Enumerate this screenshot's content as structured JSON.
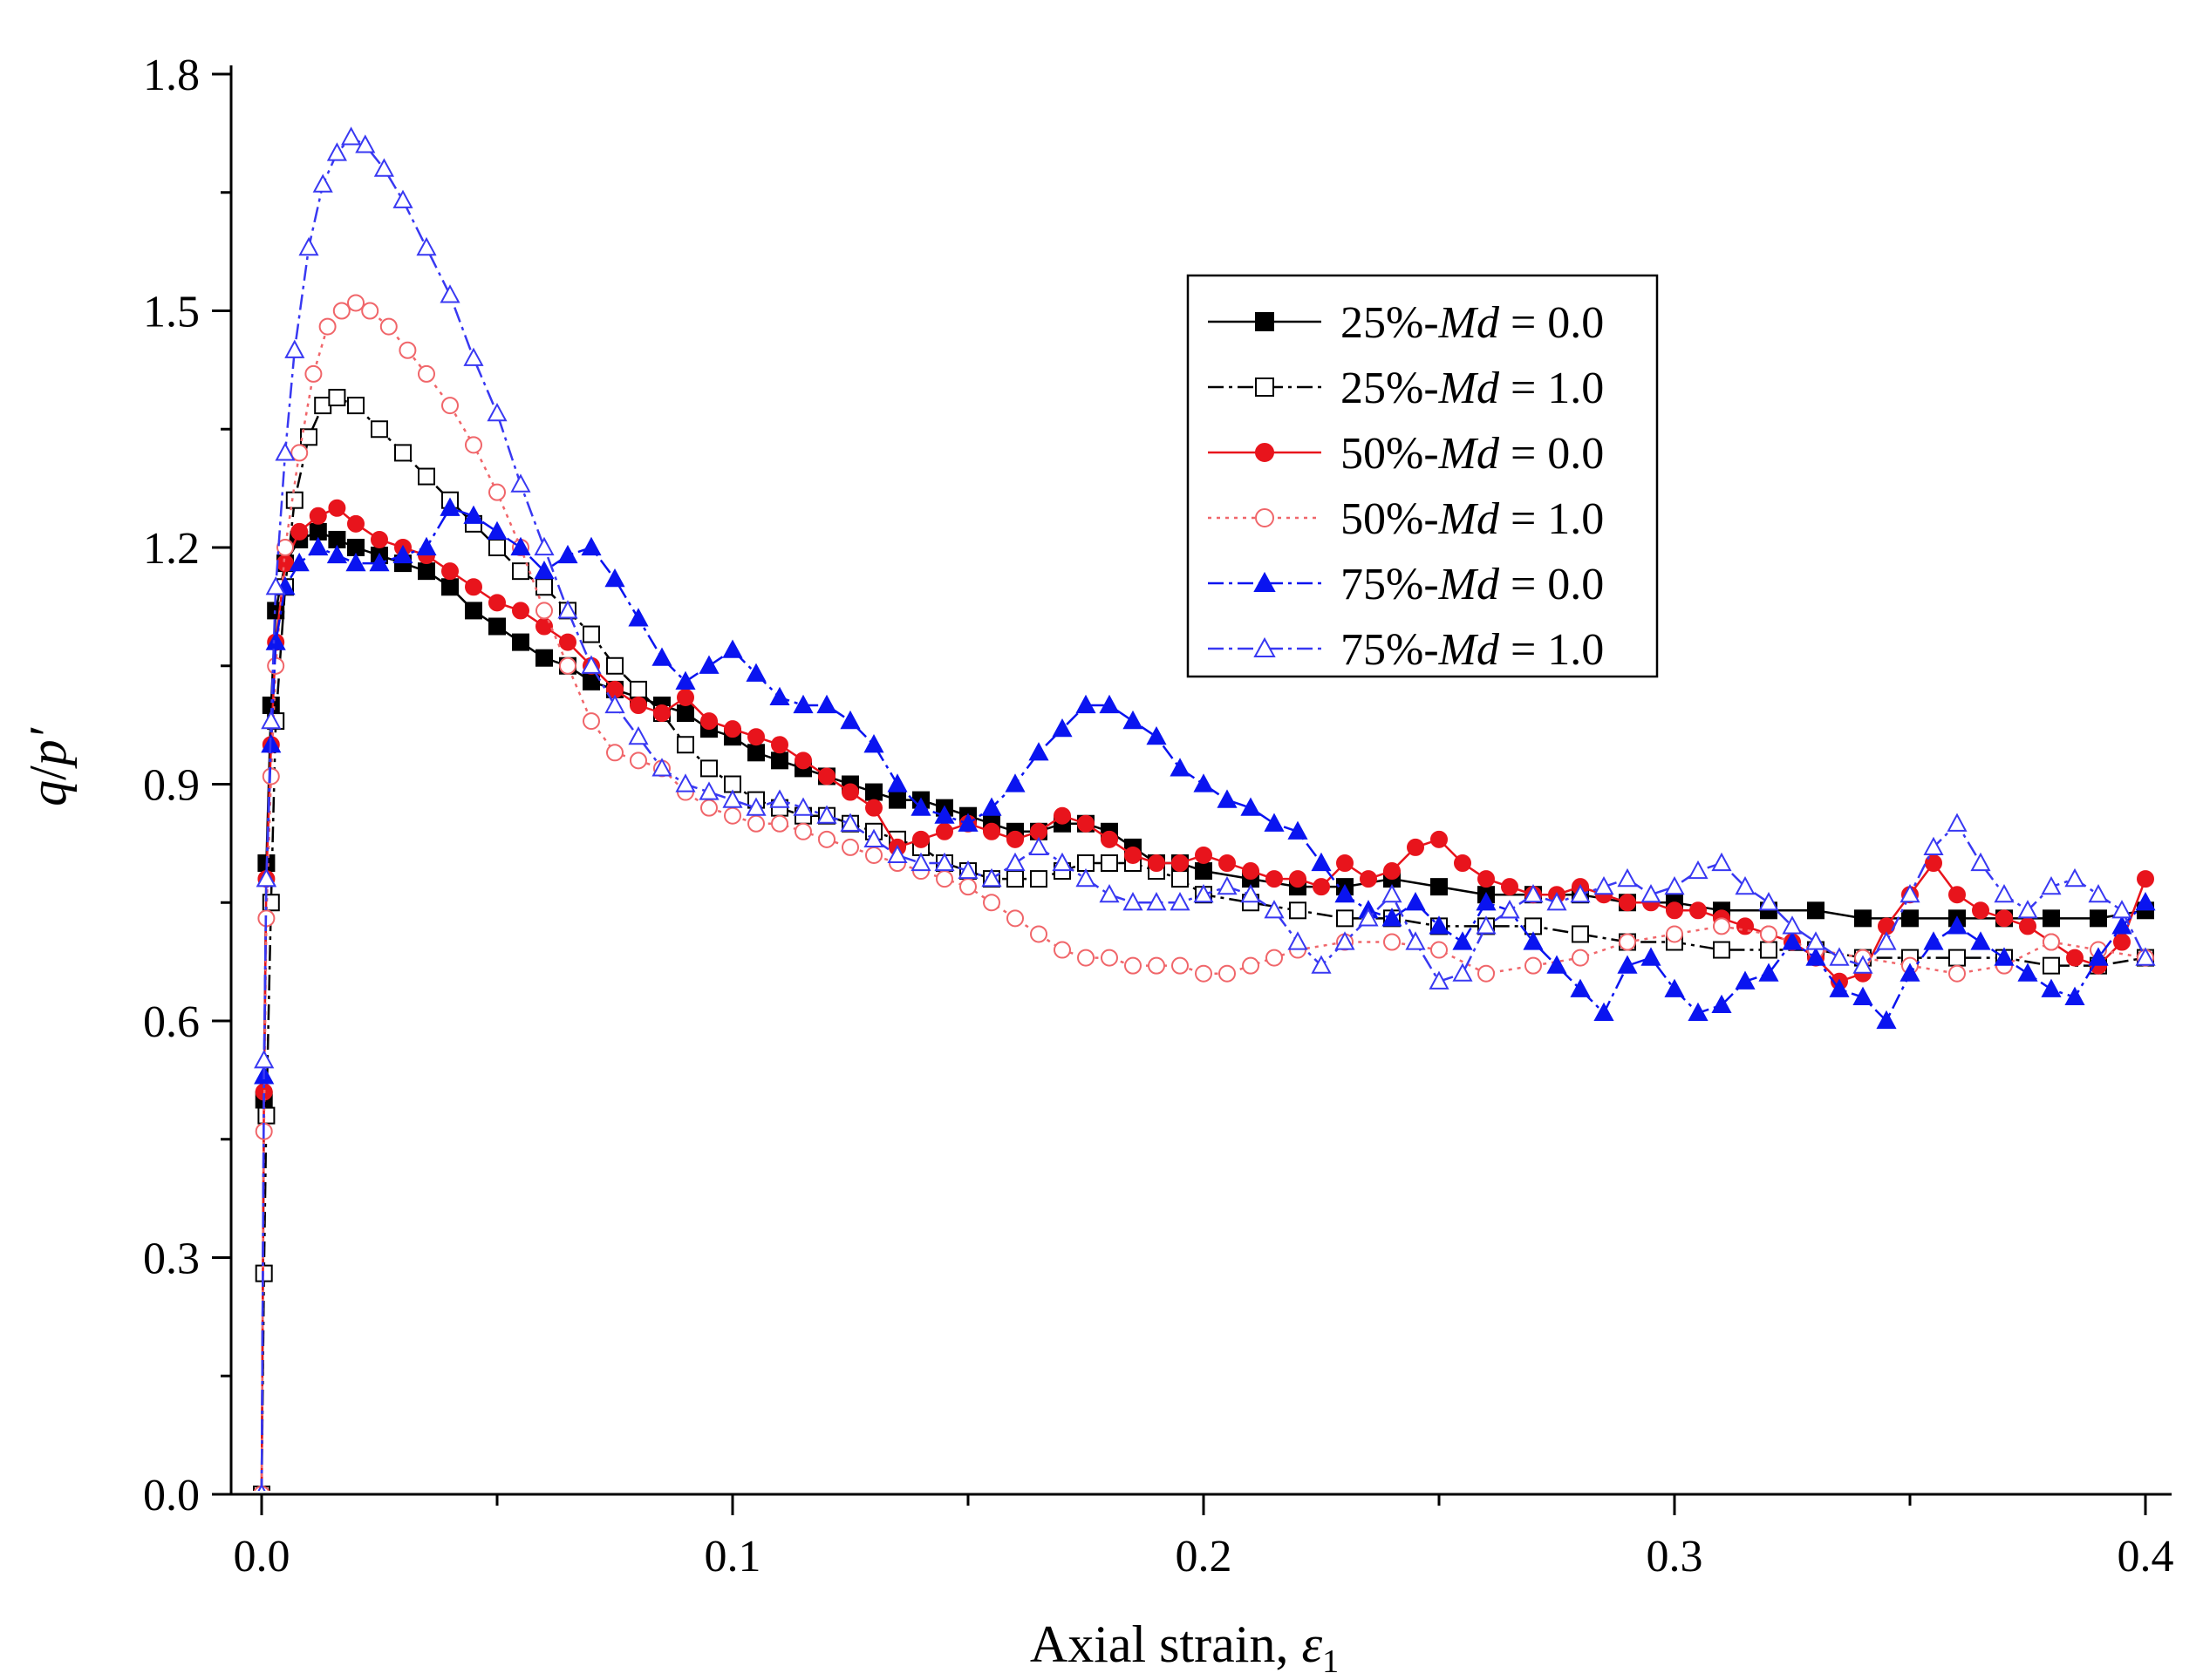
{
  "chart_data": {
    "type": "scatter",
    "xlabel_main": "Axial strain, ",
    "xlabel_symbol": "ε",
    "xlabel_sub": "1",
    "ylabel_var": "q",
    "ylabel_sep": "/",
    "ylabel_var2": "p′",
    "xlim": [
      0.0,
      0.4
    ],
    "ylim": [
      0.0,
      1.8
    ],
    "x_ticks": [
      0.0,
      0.1,
      0.2,
      0.3,
      0.4
    ],
    "x_tick_labels": [
      "0.0",
      "0.1",
      "0.2",
      "0.3",
      "0.4"
    ],
    "y_ticks": [
      0.0,
      0.3,
      0.6,
      0.9,
      1.2,
      1.5,
      1.8
    ],
    "y_tick_labels": [
      "0.0",
      "0.3",
      "0.6",
      "0.9",
      "1.2",
      "1.5",
      "1.8"
    ],
    "legend_position": "upper-right",
    "series": [
      {
        "name": "25%-Md = 0.0",
        "legend_prefix": "25%-",
        "legend_var": "Md",
        "legend_suffix": " = 0.0",
        "color": "#000000",
        "marker": "square",
        "filled": true,
        "dash": "none",
        "x": [
          0,
          0.0005,
          0.001,
          0.002,
          0.003,
          0.005,
          0.008,
          0.012,
          0.016,
          0.02,
          0.025,
          0.03,
          0.035,
          0.04,
          0.045,
          0.05,
          0.055,
          0.06,
          0.065,
          0.07,
          0.075,
          0.08,
          0.085,
          0.09,
          0.095,
          0.1,
          0.105,
          0.11,
          0.115,
          0.12,
          0.125,
          0.13,
          0.135,
          0.14,
          0.145,
          0.15,
          0.155,
          0.16,
          0.165,
          0.17,
          0.175,
          0.18,
          0.185,
          0.19,
          0.195,
          0.2,
          0.21,
          0.22,
          0.23,
          0.24,
          0.25,
          0.26,
          0.27,
          0.28,
          0.29,
          0.3,
          0.31,
          0.32,
          0.33,
          0.34,
          0.35,
          0.36,
          0.37,
          0.38,
          0.39,
          0.4
        ],
        "y": [
          0,
          0.5,
          0.8,
          1.0,
          1.12,
          1.18,
          1.21,
          1.22,
          1.21,
          1.2,
          1.19,
          1.18,
          1.17,
          1.15,
          1.12,
          1.1,
          1.08,
          1.06,
          1.05,
          1.03,
          1.02,
          1.01,
          1.0,
          0.99,
          0.97,
          0.96,
          0.94,
          0.93,
          0.92,
          0.91,
          0.9,
          0.89,
          0.88,
          0.88,
          0.87,
          0.86,
          0.85,
          0.84,
          0.84,
          0.85,
          0.85,
          0.84,
          0.82,
          0.8,
          0.8,
          0.79,
          0.78,
          0.77,
          0.77,
          0.78,
          0.77,
          0.76,
          0.76,
          0.76,
          0.75,
          0.75,
          0.74,
          0.74,
          0.74,
          0.73,
          0.73,
          0.73,
          0.73,
          0.73,
          0.73,
          0.74
        ]
      },
      {
        "name": "25%-Md = 1.0",
        "legend_prefix": "25%-",
        "legend_var": "Md",
        "legend_suffix": " = 1.0",
        "color": "#000000",
        "marker": "square",
        "filled": false,
        "dash": "18,6,4,6",
        "x": [
          0,
          0.0005,
          0.001,
          0.002,
          0.003,
          0.005,
          0.007,
          0.01,
          0.013,
          0.016,
          0.02,
          0.025,
          0.03,
          0.035,
          0.04,
          0.045,
          0.05,
          0.055,
          0.06,
          0.065,
          0.07,
          0.075,
          0.08,
          0.085,
          0.09,
          0.095,
          0.1,
          0.105,
          0.11,
          0.115,
          0.12,
          0.125,
          0.13,
          0.135,
          0.14,
          0.145,
          0.15,
          0.155,
          0.16,
          0.165,
          0.17,
          0.175,
          0.18,
          0.185,
          0.19,
          0.195,
          0.2,
          0.21,
          0.22,
          0.23,
          0.24,
          0.25,
          0.26,
          0.27,
          0.28,
          0.29,
          0.3,
          0.31,
          0.32,
          0.33,
          0.34,
          0.35,
          0.36,
          0.37,
          0.38,
          0.39,
          0.4
        ],
        "y": [
          0,
          0.28,
          0.48,
          0.75,
          0.98,
          1.15,
          1.26,
          1.34,
          1.38,
          1.39,
          1.38,
          1.35,
          1.32,
          1.29,
          1.26,
          1.23,
          1.2,
          1.17,
          1.15,
          1.12,
          1.09,
          1.05,
          1.02,
          0.99,
          0.95,
          0.92,
          0.9,
          0.88,
          0.87,
          0.86,
          0.86,
          0.85,
          0.84,
          0.83,
          0.82,
          0.8,
          0.79,
          0.78,
          0.78,
          0.78,
          0.79,
          0.8,
          0.8,
          0.8,
          0.79,
          0.78,
          0.76,
          0.75,
          0.74,
          0.73,
          0.73,
          0.72,
          0.72,
          0.72,
          0.71,
          0.7,
          0.7,
          0.69,
          0.69,
          0.69,
          0.68,
          0.68,
          0.68,
          0.68,
          0.67,
          0.67,
          0.68
        ]
      },
      {
        "name": "50%-Md = 0.0",
        "legend_prefix": "50%-",
        "legend_var": "Md",
        "legend_suffix": " = 0.0",
        "color": "#e8141c",
        "marker": "circle",
        "filled": true,
        "dash": "none",
        "x": [
          0,
          0.0005,
          0.001,
          0.002,
          0.003,
          0.005,
          0.008,
          0.012,
          0.016,
          0.02,
          0.025,
          0.03,
          0.035,
          0.04,
          0.045,
          0.05,
          0.055,
          0.06,
          0.065,
          0.07,
          0.075,
          0.08,
          0.085,
          0.09,
          0.095,
          0.1,
          0.105,
          0.11,
          0.115,
          0.12,
          0.125,
          0.13,
          0.135,
          0.14,
          0.145,
          0.15,
          0.155,
          0.16,
          0.165,
          0.17,
          0.175,
          0.18,
          0.185,
          0.19,
          0.195,
          0.2,
          0.205,
          0.21,
          0.215,
          0.22,
          0.225,
          0.23,
          0.235,
          0.24,
          0.245,
          0.25,
          0.255,
          0.26,
          0.265,
          0.27,
          0.275,
          0.28,
          0.285,
          0.29,
          0.295,
          0.3,
          0.305,
          0.31,
          0.315,
          0.32,
          0.325,
          0.33,
          0.335,
          0.34,
          0.345,
          0.35,
          0.355,
          0.36,
          0.365,
          0.37,
          0.375,
          0.38,
          0.385,
          0.39,
          0.395,
          0.4
        ],
        "y": [
          0,
          0.51,
          0.78,
          0.95,
          1.08,
          1.18,
          1.22,
          1.24,
          1.25,
          1.23,
          1.21,
          1.2,
          1.19,
          1.17,
          1.15,
          1.13,
          1.12,
          1.1,
          1.08,
          1.05,
          1.02,
          1.0,
          0.99,
          1.01,
          0.98,
          0.97,
          0.96,
          0.95,
          0.93,
          0.91,
          0.89,
          0.87,
          0.82,
          0.83,
          0.84,
          0.85,
          0.84,
          0.83,
          0.84,
          0.86,
          0.85,
          0.83,
          0.81,
          0.8,
          0.8,
          0.81,
          0.8,
          0.79,
          0.78,
          0.78,
          0.77,
          0.8,
          0.78,
          0.79,
          0.82,
          0.83,
          0.8,
          0.78,
          0.77,
          0.76,
          0.76,
          0.77,
          0.76,
          0.75,
          0.75,
          0.74,
          0.74,
          0.73,
          0.72,
          0.71,
          0.7,
          0.68,
          0.65,
          0.66,
          0.72,
          0.76,
          0.8,
          0.76,
          0.74,
          0.73,
          0.72,
          0.7,
          0.68,
          0.67,
          0.7,
          0.78
        ]
      },
      {
        "name": "50%-Md = 1.0",
        "legend_prefix": "50%-",
        "legend_var": "Md",
        "legend_suffix": " = 1.0",
        "color": "#f0666a",
        "marker": "circle",
        "filled": false,
        "dash": "4,6",
        "x": [
          0,
          0.0005,
          0.001,
          0.002,
          0.003,
          0.005,
          0.008,
          0.011,
          0.014,
          0.017,
          0.02,
          0.023,
          0.027,
          0.031,
          0.035,
          0.04,
          0.045,
          0.05,
          0.055,
          0.06,
          0.065,
          0.07,
          0.075,
          0.08,
          0.085,
          0.09,
          0.095,
          0.1,
          0.105,
          0.11,
          0.115,
          0.12,
          0.125,
          0.13,
          0.135,
          0.14,
          0.145,
          0.15,
          0.155,
          0.16,
          0.165,
          0.17,
          0.175,
          0.18,
          0.185,
          0.19,
          0.195,
          0.2,
          0.205,
          0.21,
          0.215,
          0.22,
          0.23,
          0.24,
          0.25,
          0.26,
          0.27,
          0.28,
          0.29,
          0.3,
          0.31,
          0.32,
          0.33,
          0.34,
          0.35,
          0.36,
          0.37,
          0.38,
          0.39,
          0.4
        ],
        "y": [
          0,
          0.46,
          0.73,
          0.91,
          1.05,
          1.2,
          1.32,
          1.42,
          1.48,
          1.5,
          1.51,
          1.5,
          1.48,
          1.45,
          1.42,
          1.38,
          1.33,
          1.27,
          1.2,
          1.12,
          1.05,
          0.98,
          0.94,
          0.93,
          0.92,
          0.89,
          0.87,
          0.86,
          0.85,
          0.85,
          0.84,
          0.83,
          0.82,
          0.81,
          0.8,
          0.79,
          0.78,
          0.77,
          0.75,
          0.73,
          0.71,
          0.69,
          0.68,
          0.68,
          0.67,
          0.67,
          0.67,
          0.66,
          0.66,
          0.67,
          0.68,
          0.69,
          0.7,
          0.7,
          0.69,
          0.66,
          0.67,
          0.68,
          0.7,
          0.71,
          0.72,
          0.71,
          0.69,
          0.68,
          0.67,
          0.66,
          0.67,
          0.7,
          0.69,
          0.68
        ]
      },
      {
        "name": "75%-Md = 0.0",
        "legend_prefix": "75%-",
        "legend_var": "Md",
        "legend_suffix": " = 0.0",
        "color": "#0a14f0",
        "marker": "triangle",
        "filled": true,
        "dash": "18,6,4,6",
        "x": [
          0,
          0.0005,
          0.001,
          0.002,
          0.003,
          0.005,
          0.008,
          0.012,
          0.016,
          0.02,
          0.025,
          0.03,
          0.035,
          0.04,
          0.045,
          0.05,
          0.055,
          0.06,
          0.065,
          0.07,
          0.075,
          0.08,
          0.085,
          0.09,
          0.095,
          0.1,
          0.105,
          0.11,
          0.115,
          0.12,
          0.125,
          0.13,
          0.135,
          0.14,
          0.145,
          0.15,
          0.155,
          0.16,
          0.165,
          0.17,
          0.175,
          0.18,
          0.185,
          0.19,
          0.195,
          0.2,
          0.205,
          0.21,
          0.215,
          0.22,
          0.225,
          0.23,
          0.235,
          0.24,
          0.245,
          0.25,
          0.255,
          0.26,
          0.265,
          0.27,
          0.275,
          0.28,
          0.285,
          0.29,
          0.295,
          0.3,
          0.305,
          0.31,
          0.315,
          0.32,
          0.325,
          0.33,
          0.335,
          0.34,
          0.345,
          0.35,
          0.355,
          0.36,
          0.365,
          0.37,
          0.375,
          0.38,
          0.385,
          0.39,
          0.395,
          0.4
        ],
        "y": [
          0,
          0.53,
          0.78,
          0.95,
          1.08,
          1.15,
          1.18,
          1.2,
          1.19,
          1.18,
          1.18,
          1.19,
          1.2,
          1.25,
          1.24,
          1.22,
          1.2,
          1.17,
          1.19,
          1.2,
          1.16,
          1.11,
          1.06,
          1.03,
          1.05,
          1.07,
          1.04,
          1.01,
          1.0,
          1.0,
          0.98,
          0.95,
          0.9,
          0.87,
          0.86,
          0.85,
          0.87,
          0.9,
          0.94,
          0.97,
          1.0,
          1.0,
          0.98,
          0.96,
          0.92,
          0.9,
          0.88,
          0.87,
          0.85,
          0.84,
          0.8,
          0.76,
          0.74,
          0.73,
          0.75,
          0.72,
          0.7,
          0.75,
          0.74,
          0.7,
          0.67,
          0.64,
          0.61,
          0.67,
          0.68,
          0.64,
          0.61,
          0.62,
          0.65,
          0.66,
          0.7,
          0.68,
          0.64,
          0.63,
          0.6,
          0.66,
          0.7,
          0.72,
          0.7,
          0.68,
          0.66,
          0.64,
          0.63,
          0.68,
          0.72,
          0.75
        ]
      },
      {
        "name": "75%-Md = 1.0",
        "legend_prefix": "75%-",
        "legend_var": "Md",
        "legend_suffix": " = 1.0",
        "color": "#3838f2",
        "marker": "triangle",
        "filled": false,
        "dash": "18,6,4,6",
        "x": [
          0,
          0.0005,
          0.001,
          0.002,
          0.003,
          0.005,
          0.007,
          0.01,
          0.013,
          0.016,
          0.019,
          0.022,
          0.026,
          0.03,
          0.035,
          0.04,
          0.045,
          0.05,
          0.055,
          0.06,
          0.065,
          0.07,
          0.075,
          0.08,
          0.085,
          0.09,
          0.095,
          0.1,
          0.105,
          0.11,
          0.115,
          0.12,
          0.125,
          0.13,
          0.135,
          0.14,
          0.145,
          0.15,
          0.155,
          0.16,
          0.165,
          0.17,
          0.175,
          0.18,
          0.185,
          0.19,
          0.195,
          0.2,
          0.205,
          0.21,
          0.215,
          0.22,
          0.225,
          0.23,
          0.235,
          0.24,
          0.245,
          0.25,
          0.255,
          0.26,
          0.265,
          0.27,
          0.275,
          0.28,
          0.285,
          0.29,
          0.295,
          0.3,
          0.305,
          0.31,
          0.315,
          0.32,
          0.325,
          0.33,
          0.335,
          0.34,
          0.345,
          0.35,
          0.355,
          0.36,
          0.365,
          0.37,
          0.375,
          0.38,
          0.385,
          0.39,
          0.395,
          0.4
        ],
        "y": [
          0,
          0.55,
          0.78,
          0.98,
          1.15,
          1.32,
          1.45,
          1.58,
          1.66,
          1.7,
          1.72,
          1.71,
          1.68,
          1.64,
          1.58,
          1.52,
          1.44,
          1.37,
          1.28,
          1.2,
          1.12,
          1.05,
          1.0,
          0.96,
          0.92,
          0.9,
          0.89,
          0.88,
          0.87,
          0.88,
          0.87,
          0.86,
          0.85,
          0.83,
          0.81,
          0.8,
          0.8,
          0.79,
          0.78,
          0.8,
          0.82,
          0.8,
          0.78,
          0.76,
          0.75,
          0.75,
          0.75,
          0.76,
          0.77,
          0.76,
          0.74,
          0.7,
          0.67,
          0.7,
          0.73,
          0.76,
          0.7,
          0.65,
          0.66,
          0.72,
          0.74,
          0.76,
          0.75,
          0.76,
          0.77,
          0.78,
          0.76,
          0.77,
          0.79,
          0.8,
          0.77,
          0.75,
          0.72,
          0.7,
          0.68,
          0.67,
          0.7,
          0.76,
          0.82,
          0.85,
          0.8,
          0.76,
          0.74,
          0.77,
          0.78,
          0.76,
          0.74,
          0.68
        ]
      }
    ]
  }
}
